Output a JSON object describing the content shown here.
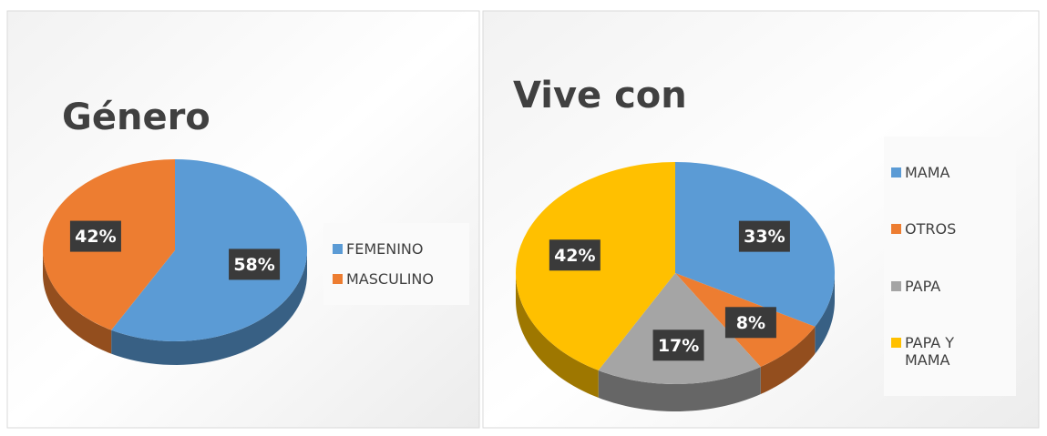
{
  "chart_data": [
    {
      "type": "pie",
      "title": "Género",
      "categories": [
        "FEMENINO",
        "MASCULINO"
      ],
      "values": [
        58,
        42
      ],
      "value_labels": [
        "58%",
        "42%"
      ],
      "colors": [
        "#5b9bd5",
        "#ed7d31"
      ],
      "legend": "right"
    },
    {
      "type": "pie",
      "title": "Vive con",
      "categories": [
        "MAMA",
        "OTROS",
        "PAPA",
        "PAPA Y MAMA"
      ],
      "values": [
        33,
        8,
        17,
        42
      ],
      "value_labels": [
        "33%",
        "8%",
        "17%",
        "42%"
      ],
      "colors": [
        "#5b9bd5",
        "#ed7d31",
        "#a5a5a5",
        "#ffc000"
      ],
      "legend": "right"
    }
  ]
}
